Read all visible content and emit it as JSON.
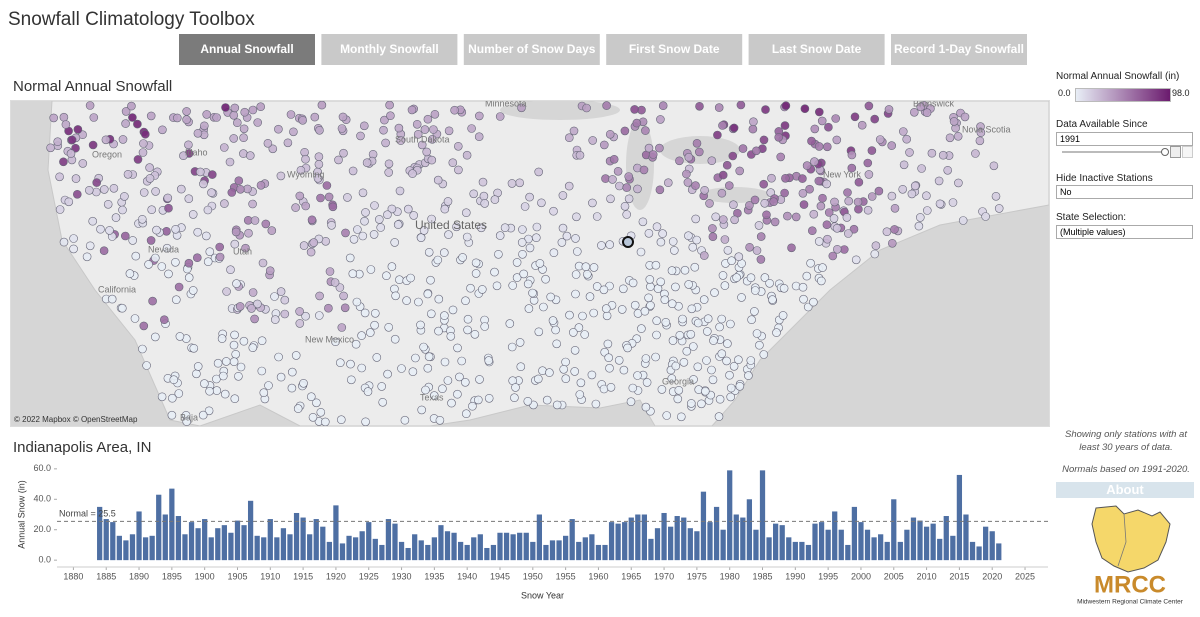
{
  "header": {
    "title": "Snowfall Climatology Toolbox"
  },
  "tabs": [
    {
      "label": "Annual Snowfall",
      "active": true
    },
    {
      "label": "Monthly Snowfall",
      "active": false
    },
    {
      "label": "Number of Snow Days",
      "active": false
    },
    {
      "label": "First Snow Date",
      "active": false
    },
    {
      "label": "Last Snow Date",
      "active": false
    },
    {
      "label": "Record 1-Day Snowfall",
      "active": false
    }
  ],
  "map": {
    "title": "Normal Annual Snowfall",
    "labels": [
      "Minnesota",
      "South Dakota",
      "Oregon",
      "Idaho",
      "Wyoming",
      "United States",
      "Nevada",
      "Utah",
      "California",
      "New Mexico",
      "Texas",
      "Georgia",
      "New York",
      "Nova Scotia",
      "Brunswick",
      "Baja"
    ],
    "attribution": "© 2022 Mapbox  © OpenStreetMap"
  },
  "legend": {
    "title": "Normal Annual Snowfall (in)",
    "min_label": "0.0",
    "max_label": "98.0",
    "colors": [
      "#e8eef6",
      "#6b1b6e"
    ]
  },
  "filters": [
    {
      "label": "Data Available Since",
      "value": "1991"
    },
    {
      "label": "Hide Inactive Stations",
      "value": "No"
    },
    {
      "label": "State Selection:",
      "value": "(Multiple values)"
    }
  ],
  "notes": [
    "Showing only stations with at least 30 years of data.",
    "Normals based on 1991-2020."
  ],
  "about": "About",
  "logo": {
    "name": "MRCC",
    "subtitle": "Midwestern Regional Climate Center"
  },
  "chart_data": {
    "type": "bar",
    "title": "Indianapolis Area, IN",
    "x_label": "Snow Year",
    "y_label": "Annual Snow (in)",
    "color": "#4e6fa3",
    "x": [
      1884,
      1885,
      1886,
      1887,
      1888,
      1889,
      1890,
      1891,
      1892,
      1893,
      1894,
      1895,
      1896,
      1897,
      1898,
      1899,
      1900,
      1901,
      1902,
      1903,
      1904,
      1905,
      1906,
      1907,
      1908,
      1909,
      1910,
      1911,
      1912,
      1913,
      1914,
      1915,
      1916,
      1917,
      1918,
      1919,
      1920,
      1921,
      1922,
      1923,
      1924,
      1925,
      1926,
      1927,
      1928,
      1929,
      1930,
      1931,
      1932,
      1933,
      1934,
      1935,
      1936,
      1937,
      1938,
      1939,
      1940,
      1941,
      1942,
      1943,
      1944,
      1945,
      1946,
      1947,
      1948,
      1949,
      1950,
      1951,
      1952,
      1953,
      1954,
      1955,
      1956,
      1957,
      1958,
      1959,
      1960,
      1961,
      1962,
      1963,
      1964,
      1965,
      1966,
      1967,
      1968,
      1969,
      1970,
      1971,
      1972,
      1973,
      1974,
      1975,
      1976,
      1977,
      1978,
      1979,
      1980,
      1981,
      1982,
      1983,
      1984,
      1985,
      1986,
      1987,
      1988,
      1989,
      1990,
      1991,
      1992,
      1993,
      1994,
      1995,
      1996,
      1997,
      1998,
      1999,
      2000,
      2001,
      2002,
      2003,
      2004,
      2005,
      2006,
      2007,
      2008,
      2009,
      2010,
      2011,
      2012,
      2013,
      2014,
      2015,
      2016,
      2017,
      2018,
      2019,
      2020,
      2021
    ],
    "values": [
      35,
      27,
      25,
      16,
      13,
      17,
      32,
      15,
      16,
      43,
      30,
      47,
      29,
      17,
      25,
      21,
      27,
      15,
      21,
      23,
      18,
      26,
      23,
      39,
      16,
      15,
      27,
      15,
      21,
      17,
      31,
      28,
      17,
      27,
      22,
      12,
      36,
      11,
      16,
      15,
      19,
      25,
      14,
      10,
      27,
      24,
      12,
      8,
      17,
      13,
      10,
      15,
      23,
      19,
      18,
      12,
      10,
      15,
      17,
      8,
      10,
      18,
      18,
      17,
      18,
      18,
      12,
      30,
      10,
      13,
      13,
      16,
      27,
      12,
      15,
      17,
      10,
      10,
      25,
      24,
      25,
      28,
      30,
      30,
      14,
      21,
      31,
      22,
      29,
      28,
      21,
      19,
      45,
      25,
      35,
      20,
      59,
      30,
      28,
      40,
      20,
      59,
      15,
      24,
      23,
      15,
      12,
      12,
      10,
      24,
      25,
      20,
      32,
      20,
      10,
      35,
      25,
      20,
      15,
      17,
      12,
      40,
      12,
      20,
      28,
      26,
      22,
      24,
      14,
      29,
      16,
      56,
      30,
      12,
      9,
      22,
      19,
      11
    ],
    "normal": {
      "value": 25.5,
      "label": "Normal = 25.5"
    },
    "xlim": [
      1877.5,
      2028.5
    ],
    "ylim": [
      -4.5,
      64.5
    ],
    "xticks": [
      1880,
      1885,
      1890,
      1895,
      1900,
      1905,
      1910,
      1915,
      1920,
      1925,
      1930,
      1935,
      1940,
      1945,
      1950,
      1955,
      1960,
      1965,
      1970,
      1975,
      1980,
      1985,
      1990,
      1995,
      2000,
      2005,
      2010,
      2015,
      2020,
      2025
    ],
    "yticks": [
      {
        "value": 0,
        "label": "0.0"
      },
      {
        "value": 20,
        "label": "20.0"
      },
      {
        "value": 40,
        "label": "40.0"
      },
      {
        "value": 60,
        "label": "60.0"
      }
    ],
    "grid": false
  }
}
